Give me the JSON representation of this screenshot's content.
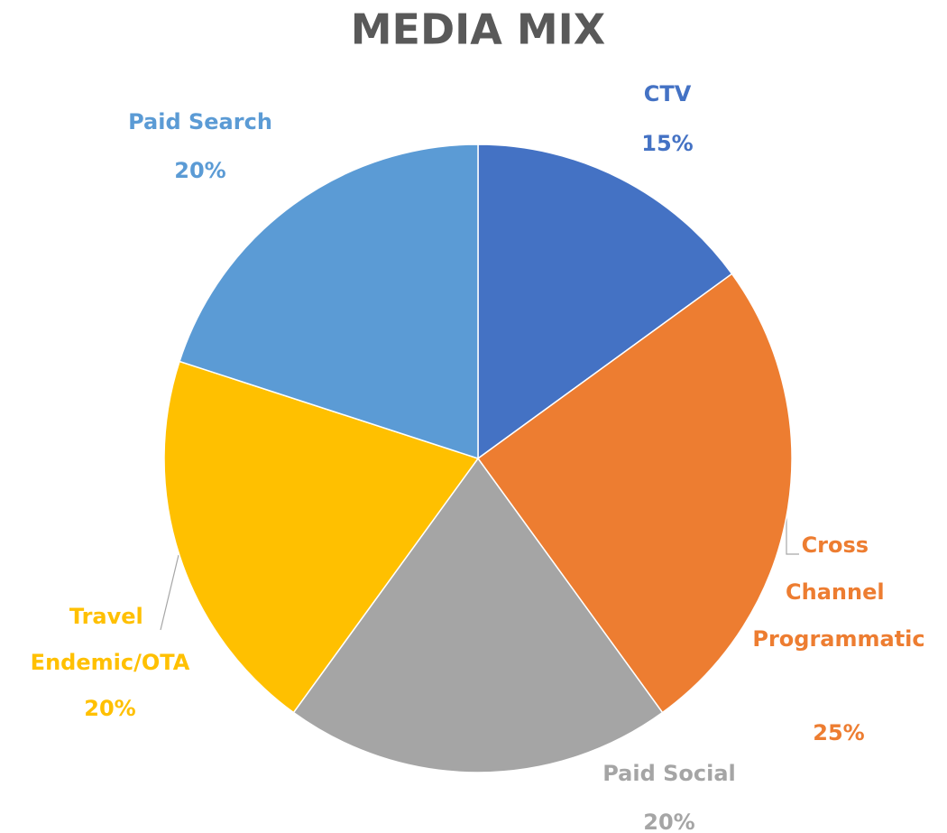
{
  "chart_data": {
    "type": "pie",
    "title": "MEDIA MIX",
    "categories": [
      "CTV",
      "Cross Channel Programmatic",
      "Paid Social",
      "Travel Endemic/OTA",
      "Paid Search"
    ],
    "values": [
      15,
      25,
      20,
      20,
      20
    ],
    "value_labels": [
      "15%",
      "25%",
      "20%",
      "20%",
      "20%"
    ],
    "colors": [
      "#4472c4",
      "#ed7d31",
      "#a5a5a5",
      "#ffc000",
      "#5b9bd5"
    ]
  }
}
